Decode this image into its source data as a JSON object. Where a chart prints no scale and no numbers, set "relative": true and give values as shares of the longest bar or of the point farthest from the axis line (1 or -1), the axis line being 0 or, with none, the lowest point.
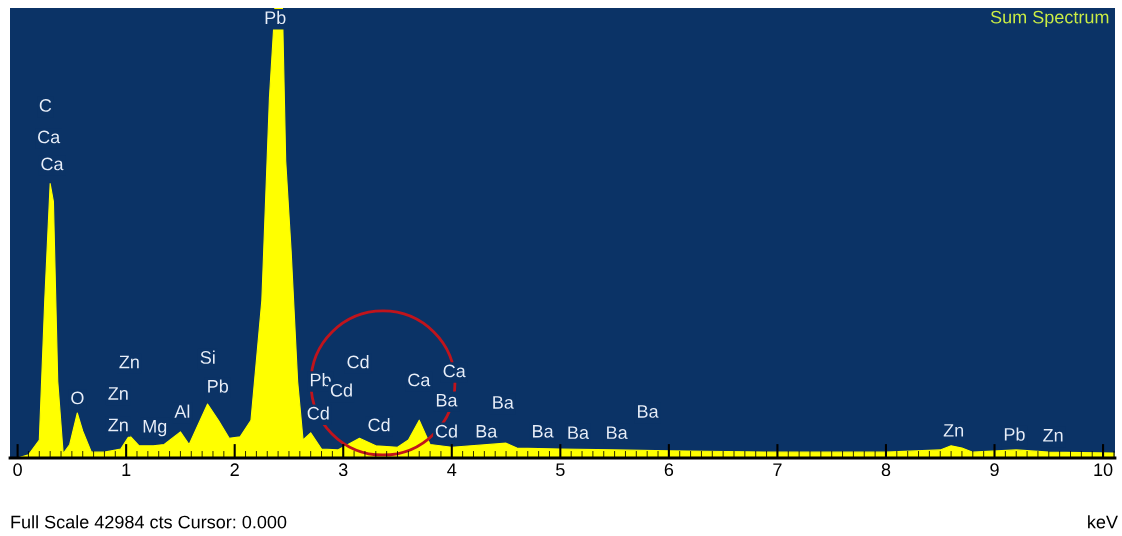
{
  "chart_data": {
    "type": "area",
    "title": "Sum Spectrum",
    "xlabel": "keV",
    "relative": true,
    "x": [
      0.0,
      0.1,
      0.2,
      0.25,
      0.3,
      0.33,
      0.37,
      0.42,
      0.48,
      0.55,
      0.6,
      0.68,
      0.8,
      0.95,
      1.03,
      1.12,
      1.25,
      1.35,
      1.5,
      1.58,
      1.75,
      1.85,
      1.95,
      2.05,
      2.15,
      2.25,
      2.32,
      2.37,
      2.44,
      2.47,
      2.52,
      2.58,
      2.63,
      2.7,
      2.8,
      2.95,
      3.15,
      3.3,
      3.5,
      3.6,
      3.7,
      3.8,
      4.0,
      4.5,
      4.6,
      5.0,
      5.5,
      6.0,
      7.0,
      8.0,
      8.5,
      8.6,
      8.7,
      8.8,
      9.2,
      9.5,
      10.1
    ],
    "series": [
      {
        "color": "#ffff00",
        "values": [
          0.0,
          0.007,
          0.04,
          0.35,
          0.61,
          0.57,
          0.17,
          0.01,
          0.03,
          0.1,
          0.06,
          0.013,
          0.013,
          0.02,
          0.05,
          0.027,
          0.027,
          0.03,
          0.058,
          0.03,
          0.12,
          0.084,
          0.044,
          0.047,
          0.084,
          0.35,
          0.8,
          1.0,
          1.0,
          0.66,
          0.46,
          0.17,
          0.04,
          0.056,
          0.02,
          0.018,
          0.044,
          0.027,
          0.024,
          0.04,
          0.084,
          0.03,
          0.024,
          0.033,
          0.022,
          0.02,
          0.018,
          0.016,
          0.013,
          0.013,
          0.018,
          0.027,
          0.022,
          0.013,
          0.018,
          0.013,
          0.011
        ]
      }
    ],
    "xlim": [
      -0.07,
      10.11
    ],
    "xticks": [
      0,
      1,
      2,
      3,
      4,
      5,
      6,
      7,
      8,
      9,
      10
    ],
    "grid": false,
    "annotations": [
      "C",
      "Ca",
      "Ca",
      "Pb",
      "O",
      "Zn",
      "Zn",
      "Zn",
      "Mg",
      "Al",
      "Si",
      "Pb",
      "Pb",
      "Cd",
      "Cd",
      "Cd",
      "Cd",
      "Ca",
      "Ca",
      "Ba",
      "Cd",
      "Ba",
      "Ba",
      "Ba",
      "Ba",
      "Ba",
      "Ba",
      "Zn",
      "Pb",
      "Zn",
      "Full Scale 42984 cts Cursor: 0.000"
    ]
  }
}
